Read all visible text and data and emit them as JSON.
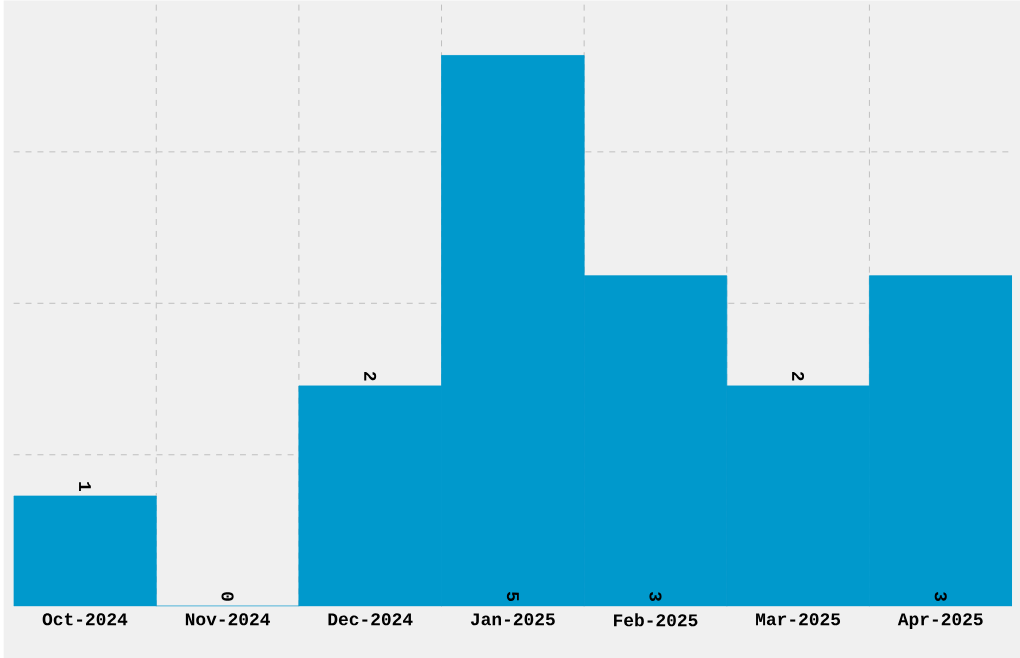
{
  "chart_data": {
    "type": "bar",
    "categories": [
      "Oct-2024",
      "Nov-2024",
      "Dec-2024",
      "Jan-2025",
      "Feb-2025",
      "Mar-2025",
      "Apr-2025"
    ],
    "values": [
      1,
      0,
      2,
      5,
      3,
      2,
      3
    ],
    "color": "#0099cc",
    "ylim": [
      0,
      5.5
    ],
    "yticks": [
      {
        "value": 1.375,
        "label": null
      },
      {
        "value": 2.75,
        "label": null
      },
      {
        "value": 4.125,
        "label": null
      }
    ],
    "grid": true,
    "data_labels": true,
    "tick_labels": "x"
  }
}
